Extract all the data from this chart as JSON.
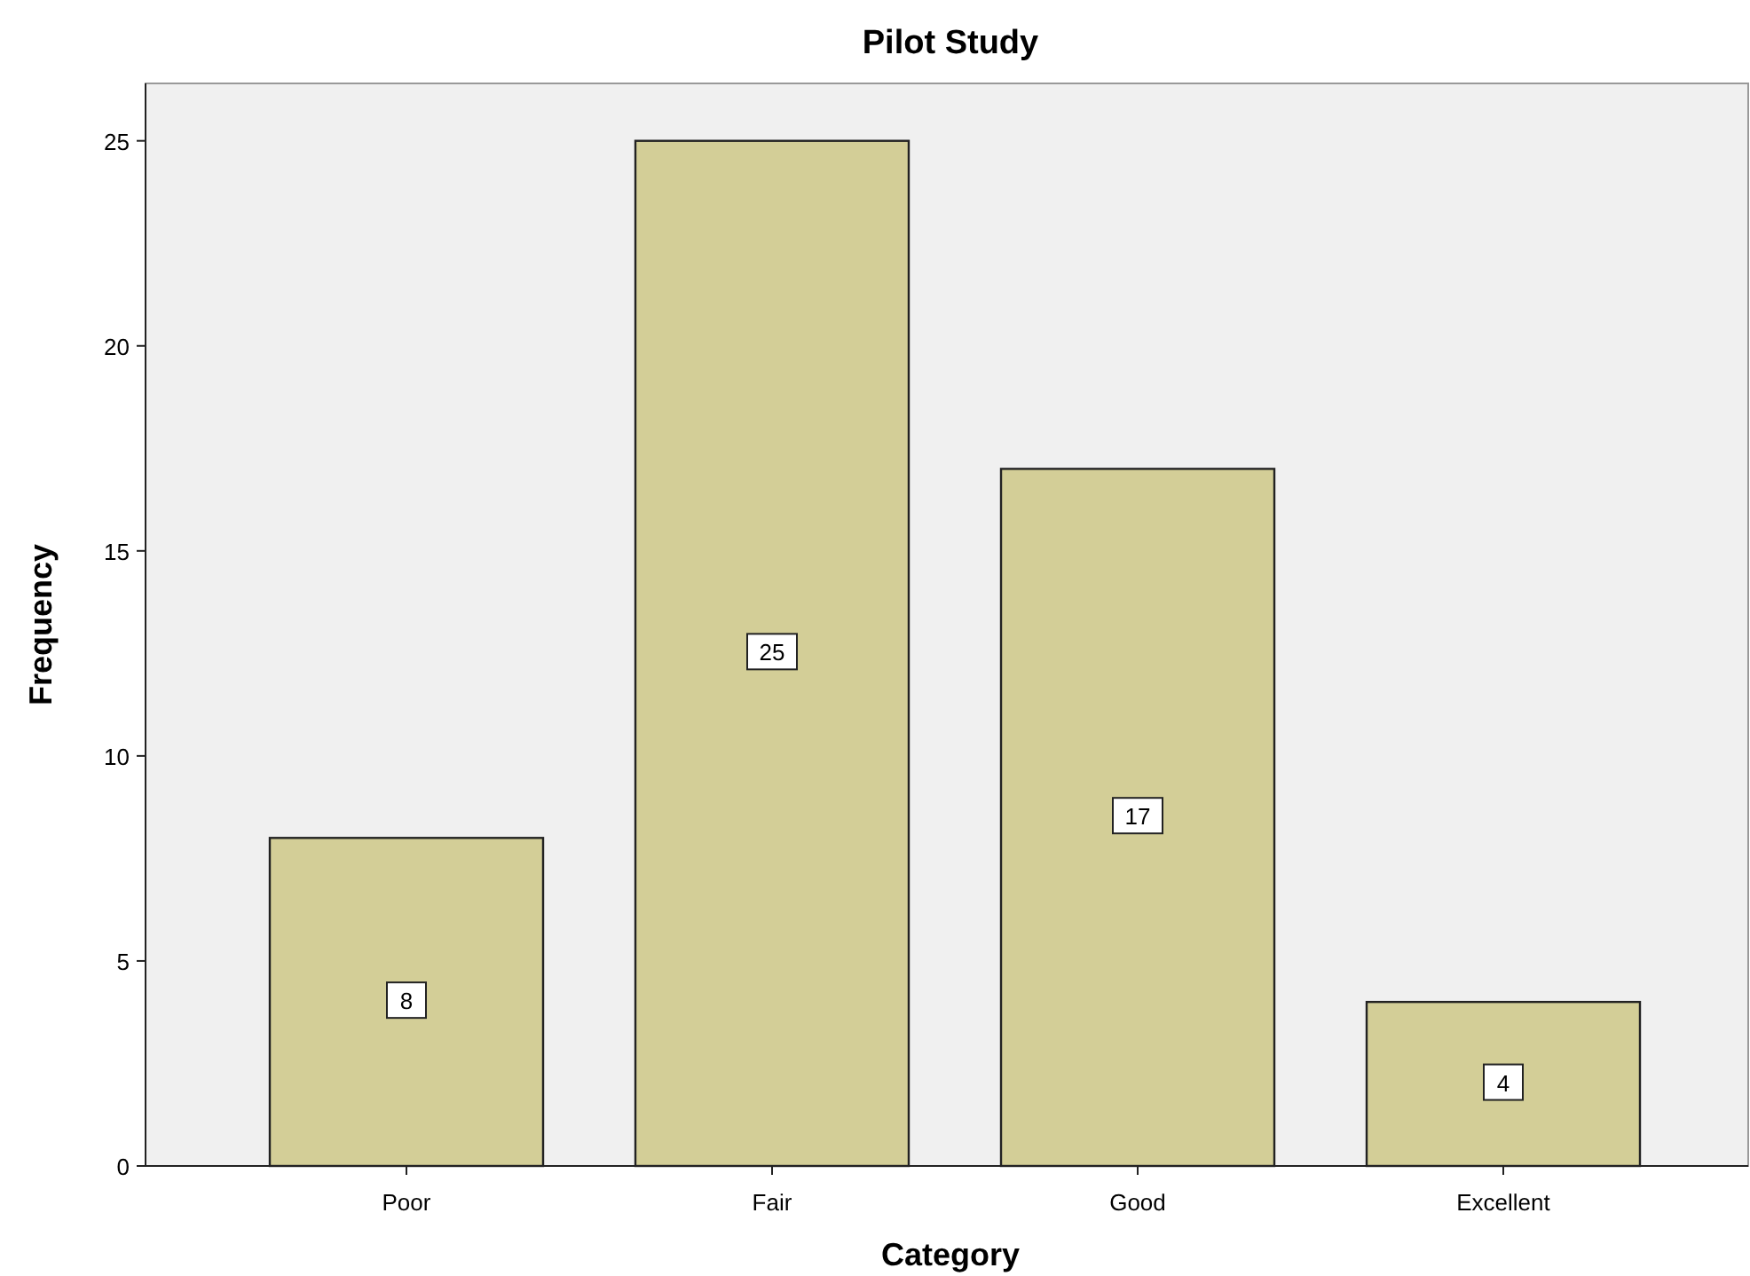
{
  "chart_data": {
    "type": "bar",
    "title": "Pilot Study",
    "xlabel": "Category",
    "ylabel": "Frequency",
    "categories": [
      "Poor",
      "Fair",
      "Good",
      "Excellent"
    ],
    "values": [
      8,
      25,
      17,
      4
    ],
    "color": "#d3ce97",
    "ylim": [
      0,
      26.4
    ],
    "yticks": [
      0,
      5,
      10,
      15,
      20,
      25
    ],
    "grid": false,
    "data_labels": true
  }
}
